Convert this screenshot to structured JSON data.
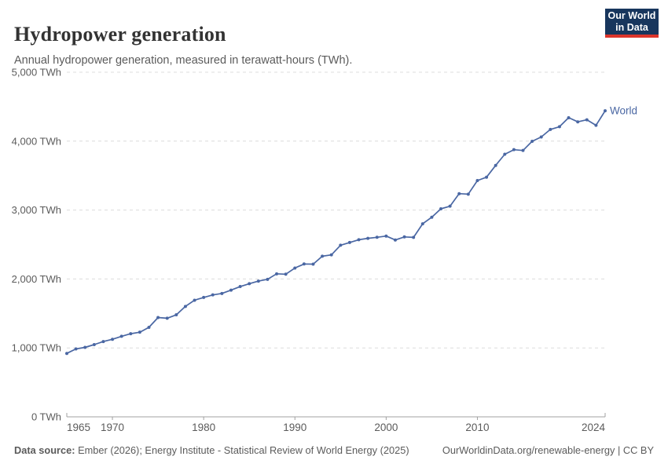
{
  "header": {
    "title": "Hydropower generation",
    "subtitle": "Annual hydropower generation, measured in terawatt-hours (TWh).",
    "logo": {
      "line1": "Our World",
      "line2": "in Data"
    }
  },
  "chart_data": {
    "type": "line",
    "title": "Hydropower generation",
    "unit": "TWh",
    "xlim": [
      1965,
      2024
    ],
    "ylim": [
      0,
      5000
    ],
    "grid": "horizontal-dashed",
    "legend_position": "end-of-line",
    "x_ticks": [
      1965,
      1970,
      1980,
      1990,
      2000,
      2010,
      2024
    ],
    "x_tick_labels": [
      "1965",
      "1970",
      "1980",
      "1990",
      "2000",
      "2010",
      "2024"
    ],
    "y_ticks": [
      0,
      1000,
      2000,
      3000,
      4000,
      5000
    ],
    "y_tick_labels": [
      "0 TWh",
      "1,000 TWh",
      "2,000 TWh",
      "3,000 TWh",
      "4,000 TWh",
      "5,000 TWh"
    ],
    "x": [
      1965,
      1966,
      1967,
      1968,
      1969,
      1970,
      1971,
      1972,
      1973,
      1974,
      1975,
      1976,
      1977,
      1978,
      1979,
      1980,
      1981,
      1982,
      1983,
      1984,
      1985,
      1986,
      1987,
      1988,
      1989,
      1990,
      1991,
      1992,
      1993,
      1994,
      1995,
      1996,
      1997,
      1998,
      1999,
      2000,
      2001,
      2002,
      2003,
      2004,
      2005,
      2006,
      2007,
      2008,
      2009,
      2010,
      2011,
      2012,
      2013,
      2014,
      2015,
      2016,
      2017,
      2018,
      2019,
      2020,
      2021,
      2022,
      2023,
      2024
    ],
    "series": [
      {
        "name": "World",
        "color": "#4a67a3",
        "values": [
          920,
          985,
          1008,
          1048,
          1092,
          1125,
          1169,
          1206,
          1228,
          1298,
          1441,
          1431,
          1480,
          1602,
          1692,
          1732,
          1769,
          1790,
          1838,
          1890,
          1932,
          1969,
          1995,
          2075,
          2070,
          2159,
          2218,
          2215,
          2330,
          2350,
          2490,
          2530,
          2570,
          2590,
          2605,
          2623,
          2566,
          2611,
          2604,
          2801,
          2896,
          3018,
          3056,
          3238,
          3231,
          3428,
          3477,
          3648,
          3810,
          3876,
          3865,
          3998,
          4060,
          4170,
          4210,
          4340,
          4280,
          4310,
          4230,
          4440
        ]
      }
    ],
    "colors": {
      "gridline": "#dcdcdc",
      "axis": "#a0a0a0",
      "tick_label": "#5b5b5b"
    }
  },
  "footer": {
    "datasource_label": "Data source:",
    "datasource_text": " Ember (2026); Energy Institute - Statistical Review of World Energy (2025)",
    "link_text": "OurWorldinData.org/renewable-energy | CC BY"
  }
}
